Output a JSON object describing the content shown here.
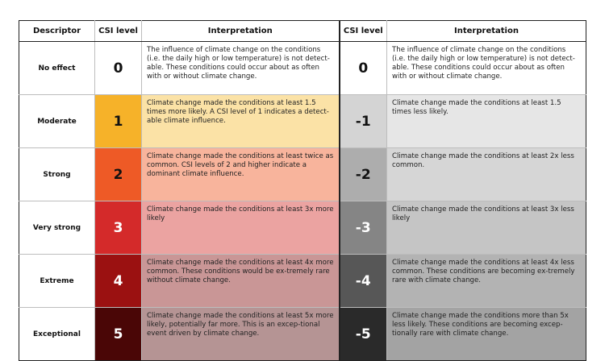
{
  "headers": {
    "descriptor": "Descriptor",
    "csi_level": "CSI level",
    "interpretation": "Interpretation",
    "csi_level_neg": "CSI level",
    "interpretation_neg": "Interpretation"
  },
  "rows": [
    {
      "descriptor": "No effect",
      "pos_level": "0",
      "pos_text": "The influence of climate change on the conditions (i.e. the daily high or low temperature) is not detect-able. These conditions could occur about as often with or without climate change.",
      "neg_level": "0",
      "neg_text": "The influence of climate change on the conditions (i.e. the daily high or low temperature) is not detect-able. These conditions could occur about as often with or without climate change.",
      "pos_level_bg": "#ffffff",
      "pos_level_fg": "#111111",
      "pos_text_bg": "#ffffff",
      "neg_level_bg": "#ffffff",
      "neg_level_fg": "#111111",
      "neg_text_bg": "#ffffff"
    },
    {
      "descriptor": "Moderate",
      "pos_level": "1",
      "pos_text": "Climate change made the conditions at least 1.5 times more likely. A CSI level of 1 indicates a detect-able climate influence.",
      "neg_level": "-1",
      "neg_text": "Climate change made the conditions at least 1.5 times less likely.",
      "pos_level_bg": "#f6b229",
      "pos_level_fg": "#111111",
      "pos_text_bg": "#fbe2a6",
      "neg_level_bg": "#d4d4d4",
      "neg_level_fg": "#111111",
      "neg_text_bg": "#e6e6e6"
    },
    {
      "descriptor": "Strong",
      "pos_level": "2",
      "pos_text": "Climate change made the conditions at least twice as common. CSI levels of 2 and higher indicate a dominant climate influence.",
      "neg_level": "-2",
      "neg_text": "Climate change made the conditions at least 2x less common.",
      "pos_level_bg": "#ee5a26",
      "pos_level_fg": "#111111",
      "pos_text_bg": "#f8b49c",
      "neg_level_bg": "#adadad",
      "neg_level_fg": "#111111",
      "neg_text_bg": "#d6d6d6"
    },
    {
      "descriptor": "Very strong",
      "pos_level": "3",
      "pos_text": "Climate change made the conditions at least 3x more likely",
      "neg_level": "-3",
      "neg_text": "Climate change made the conditions at least 3x less likely",
      "pos_level_bg": "#d42a2a",
      "pos_level_fg": "#ffffff",
      "pos_text_bg": "#eba3a1",
      "neg_level_bg": "#858585",
      "neg_level_fg": "#ffffff",
      "neg_text_bg": "#c5c5c5"
    },
    {
      "descriptor": "Extreme",
      "pos_level": "4",
      "pos_text": "Climate change made the conditions at least 4x more common. These conditions would be ex-tremely rare without climate change.",
      "neg_level": "-4",
      "neg_text": "Climate change made the conditions at least 4x less common. These conditions are becoming ex-tremely rare with climate change.",
      "pos_level_bg": "#9b1111",
      "pos_level_fg": "#ffffff",
      "pos_text_bg": "#c99696",
      "neg_level_bg": "#575757",
      "neg_level_fg": "#ffffff",
      "neg_text_bg": "#b3b3b3"
    },
    {
      "descriptor": "Exceptional",
      "pos_level": "5",
      "pos_text": "Climate change made the conditions at least 5x more likely, potentially far more. This is an excep-tional event driven by climate change.",
      "neg_level": "-5",
      "neg_text": "Climate change made the conditions more than 5x less likely. These conditions are becoming excep-tionally rare with climate change.",
      "pos_level_bg": "#4a0606",
      "pos_level_fg": "#ffffff",
      "pos_text_bg": "#b59494",
      "neg_level_bg": "#2a2a2a",
      "neg_level_fg": "#ffffff",
      "neg_text_bg": "#a3a3a3"
    }
  ]
}
